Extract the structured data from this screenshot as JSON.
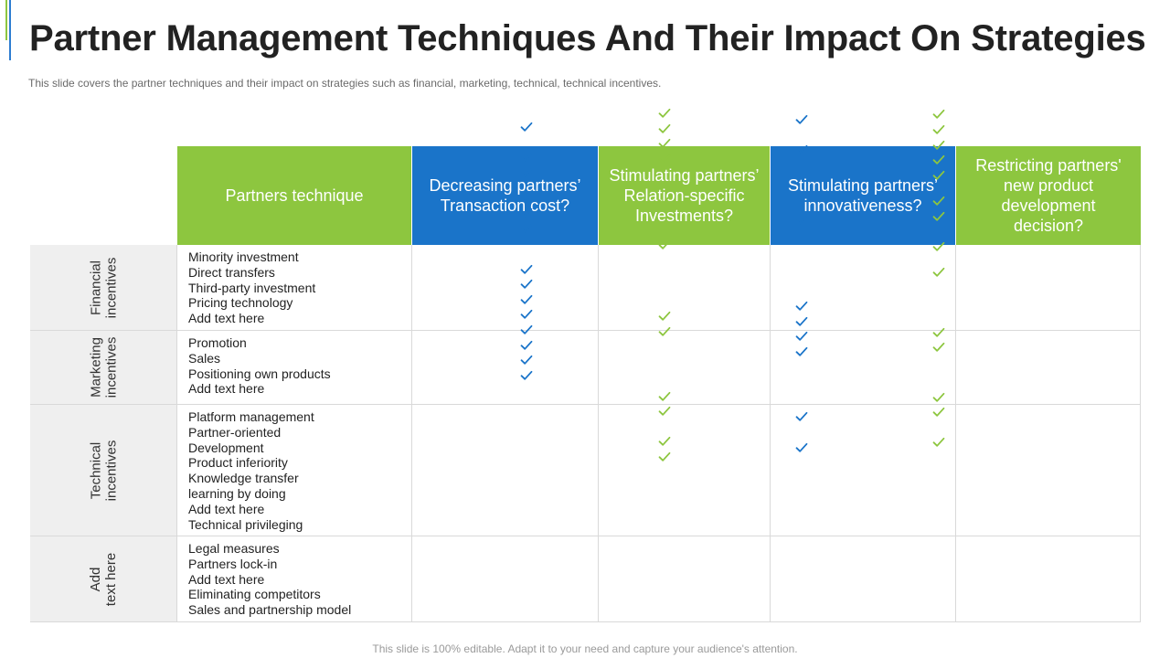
{
  "title": "Partner Management Techniques And Their Impact On Strategies",
  "subtitle": "This slide covers the partner techniques and their impact on strategies such as financial, marketing, technical, technical incentives.",
  "footer": "This slide is 100% editable. Adapt it to your need and capture your audience's attention.",
  "colors": {
    "green": "#8dc63f",
    "blue": "#1a74c9",
    "row_header_bg": "#efefef"
  },
  "table": {
    "headers": [
      "Partners technique",
      "Decreasing partners’ Transaction cost?",
      "Stimulating partners’ Relation-specific Investments?",
      "Stimulating partners’ innovativeness?",
      "Restricting partners' new product development decision?"
    ],
    "rows": [
      {
        "label": "Financial\nincentives",
        "items": [
          "Minority investment",
          "Direct transfers",
          "Third-party investment",
          "Pricing technology",
          "Add text here"
        ],
        "checks": {
          "transaction_cost": 3,
          "relation_investments": 4,
          "innovativeness": 7,
          "product_decision": 0
        }
      },
      {
        "label": "Marketing\nincentives",
        "items": [
          "Promotion",
          "Sales",
          "Positioning own products",
          "Add text here"
        ],
        "checks": {
          "transaction_cost": 3,
          "relation_investments": 2,
          "innovativeness": 4,
          "product_decision": 0
        }
      },
      {
        "label": "Technical\nincentives",
        "items": [
          "Platform management",
          "Partner-oriented",
          "Development",
          "Product inferiority",
          "Knowledge transfer",
          "learning by doing",
          "Add text here",
          "Technical privileging"
        ],
        "checks": {
          "transaction_cost": 8,
          "relation_investments": 2,
          "innovativeness": 7,
          "product_decision": 0
        }
      },
      {
        "label": "Add\ntext here",
        "items": [
          "Legal measures",
          "Partners lock-in",
          "Add text here",
          "Eliminating competitors",
          "Sales and partnership model"
        ],
        "checks": {
          "transaction_cost": 0,
          "relation_investments": 4,
          "innovativeness": 5,
          "product_decision": 0
        }
      }
    ]
  }
}
